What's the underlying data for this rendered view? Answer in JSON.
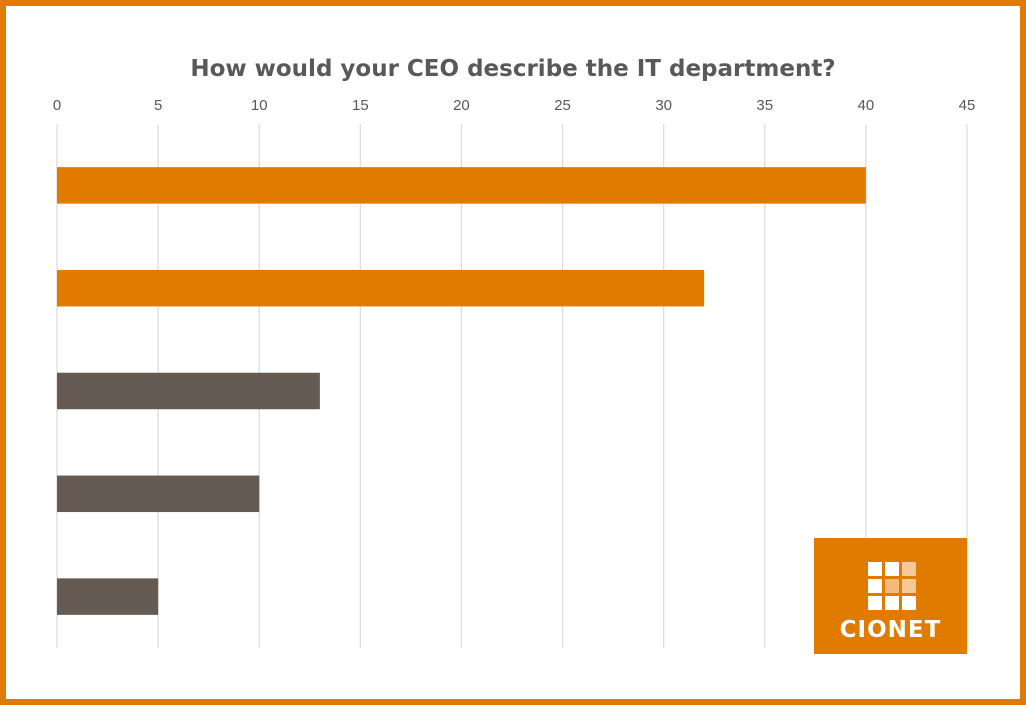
{
  "chart_data": {
    "type": "bar",
    "orientation": "horizontal",
    "title": "How would your CEO describe the IT department?",
    "xlim": [
      0,
      45
    ],
    "xticks": [
      0,
      5,
      10,
      15,
      20,
      25,
      30,
      35,
      40,
      45
    ],
    "x_axis_position": "top",
    "grid": "vertical",
    "categories": [
      "",
      "",
      "",
      "",
      ""
    ],
    "values": [
      40,
      32,
      13,
      10,
      5
    ],
    "bar_colors": [
      "#E07B00",
      "#E07B00",
      "#655B52",
      "#655B52",
      "#655B52"
    ]
  },
  "colors": {
    "frame": "#E07B00",
    "accent": "#E07B00",
    "muted_bar": "#655B52",
    "title": "#595959",
    "gridline": "#D9D9D9"
  },
  "logo": {
    "text": "CIONET",
    "background": "#E07B00"
  }
}
